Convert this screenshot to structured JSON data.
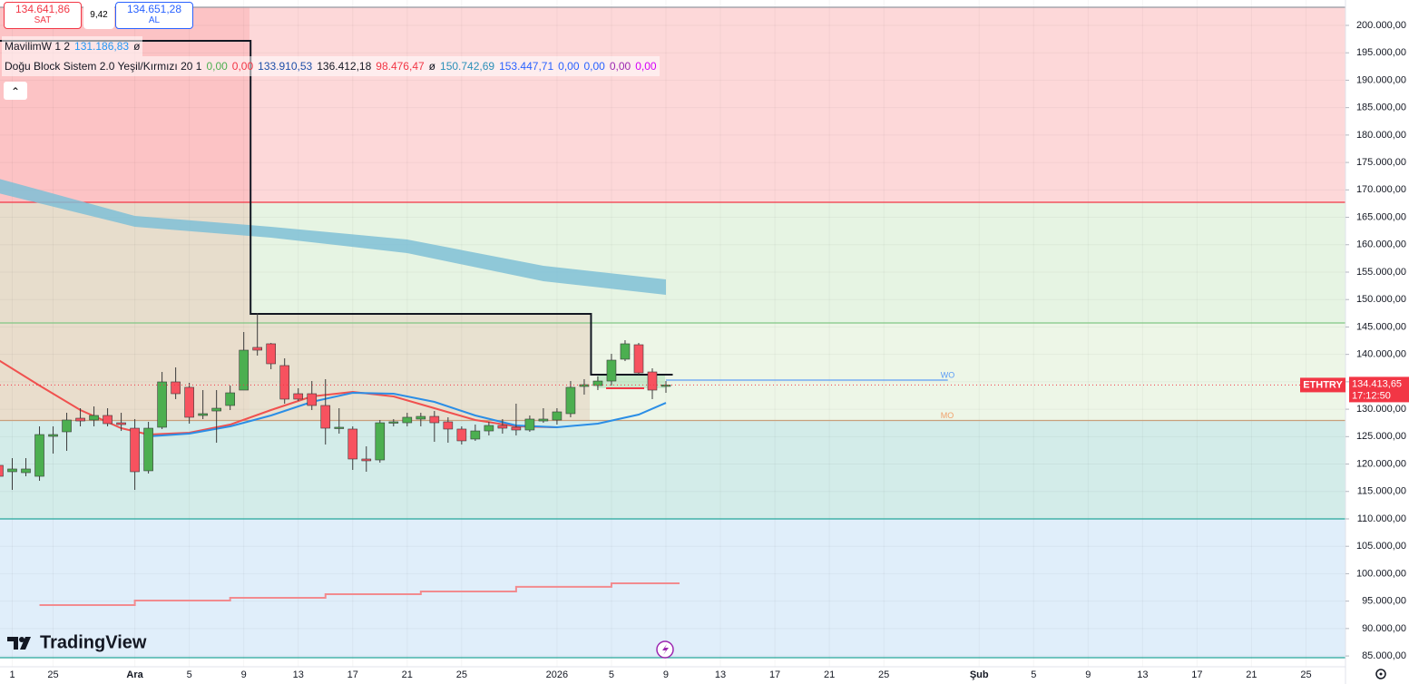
{
  "header": {
    "sell_price": "134.641,86",
    "sell_label": "SAT",
    "spread": "9,42",
    "buy_price": "134.651,28",
    "buy_label": "AL"
  },
  "legend": [
    {
      "name": "MavilimW 1 2",
      "values": [
        {
          "text": "131.186,83",
          "color": "#2196f3"
        },
        {
          "text": "ø",
          "color": "#131722"
        }
      ]
    },
    {
      "name": "Doğu Block Sistem 2.0 Yeşil/Kırmızı 20 1",
      "values": [
        {
          "text": "0,00",
          "color": "#4caf50"
        },
        {
          "text": "0,00",
          "color": "#f23645"
        },
        {
          "text": "133.910,53",
          "color": "#1e4fa8"
        },
        {
          "text": "136.412,18",
          "color": "#131722"
        },
        {
          "text": "98.476,47",
          "color": "#f23645"
        },
        {
          "text": "ø",
          "color": "#131722"
        },
        {
          "text": "150.742,69",
          "color": "#2a8fb8"
        },
        {
          "text": "153.447,71",
          "color": "#2962ff"
        },
        {
          "text": "0,00",
          "color": "#2962ff"
        },
        {
          "text": "0,00",
          "color": "#2962ff"
        },
        {
          "text": "0,00",
          "color": "#9c27b0"
        },
        {
          "text": "0,00",
          "color": "#d500f9"
        }
      ]
    }
  ],
  "branding": "TradingView",
  "chart_data": {
    "type": "candlestick",
    "symbol": "ETHTRY",
    "last_price": 134413.65,
    "last_price_label": "134.413,65",
    "countdown": "17:12:50",
    "last_price_color": "#f23645",
    "xlim": [
      -9.9,
      88.9
    ],
    "xticks": [
      {
        "value": -9,
        "label": "1"
      },
      {
        "value": -6,
        "label": "25"
      },
      {
        "value": 0,
        "label": "Ara"
      },
      {
        "value": 4,
        "label": "5"
      },
      {
        "value": 8,
        "label": "9"
      },
      {
        "value": 12,
        "label": "13"
      },
      {
        "value": 16,
        "label": "17"
      },
      {
        "value": 20,
        "label": "21"
      },
      {
        "value": 24,
        "label": "25"
      },
      {
        "value": 31,
        "label": "2026"
      },
      {
        "value": 35,
        "label": "5"
      },
      {
        "value": 39,
        "label": "9"
      },
      {
        "value": 43,
        "label": "13"
      },
      {
        "value": 47,
        "label": "17"
      },
      {
        "value": 51,
        "label": "21"
      },
      {
        "value": 55,
        "label": "25"
      },
      {
        "value": 62,
        "label": "Şub"
      },
      {
        "value": 66,
        "label": "5"
      },
      {
        "value": 70,
        "label": "9"
      },
      {
        "value": 74,
        "label": "13"
      },
      {
        "value": 78,
        "label": "17"
      },
      {
        "value": 82,
        "label": "21"
      },
      {
        "value": 86,
        "label": "25"
      }
    ],
    "ylim": [
      83030,
      204630
    ],
    "yticks": [
      {
        "value": 200000,
        "label": "200.000,00"
      },
      {
        "value": 195000,
        "label": "195.000,00"
      },
      {
        "value": 190000,
        "label": "190.000,00"
      },
      {
        "value": 185000,
        "label": "185.000,00"
      },
      {
        "value": 180000,
        "label": "180.000,00"
      },
      {
        "value": 175000,
        "label": "175.000,00"
      },
      {
        "value": 170000,
        "label": "170.000,00"
      },
      {
        "value": 165000,
        "label": "165.000,00"
      },
      {
        "value": 160000,
        "label": "160.000,00"
      },
      {
        "value": 155000,
        "label": "155.000,00"
      },
      {
        "value": 150000,
        "label": "150.000,00"
      },
      {
        "value": 145000,
        "label": "145.000,00"
      },
      {
        "value": 140000,
        "label": "140.000,00"
      },
      {
        "value": 135000,
        "label": "135.000,00"
      },
      {
        "value": 130000,
        "label": "130.000,00"
      },
      {
        "value": 125000,
        "label": "125.000,00"
      },
      {
        "value": 120000,
        "label": "120.000,00"
      },
      {
        "value": 115000,
        "label": "115.000,00"
      },
      {
        "value": 110000,
        "label": "110.000,00"
      },
      {
        "value": 105000,
        "label": "105.000,00"
      },
      {
        "value": 100000,
        "label": "100.000,00"
      },
      {
        "value": 95000,
        "label": "95.000,00"
      },
      {
        "value": 90000,
        "label": "90.000,00"
      },
      {
        "value": 85000,
        "label": "85.000,00"
      }
    ],
    "grid": true,
    "zones": [
      {
        "from": 167740,
        "to": 203310,
        "color": "#fdd8d9"
      },
      {
        "from": 145730,
        "to": 167740,
        "color": "#e6f4e3"
      },
      {
        "from": 127950,
        "to": 145730,
        "color": "#edf6e7"
      },
      {
        "from": 110000,
        "to": 127950,
        "color": "#d3ece9"
      },
      {
        "from": 84680,
        "to": 110000,
        "color": "#e0eefa"
      }
    ],
    "levels": [
      {
        "value": 203310,
        "color": "#9598a1"
      },
      {
        "value": 167740,
        "color": "#f23645"
      },
      {
        "value": 145730,
        "color": "#81c784"
      },
      {
        "value": 127950,
        "color": "#c9a07c"
      },
      {
        "value": 110000,
        "color": "#26a69a"
      },
      {
        "value": 84680,
        "color": "#26a69a"
      },
      {
        "value": 135310,
        "color": "#5b9cf6",
        "x": [
          39,
          59.7
        ],
        "label": "WO"
      },
      {
        "value": 127950,
        "color": "#f0a06a",
        "x": [
          59.7,
          59.7
        ],
        "label": "MO"
      }
    ],
    "candles": {
      "up_color": "#4caf50",
      "down_color": "#f7525f",
      "x": [
        -10,
        -9,
        -8,
        -7,
        -6,
        -5,
        -4,
        -3,
        -2,
        -1,
        0,
        1,
        2,
        3,
        4,
        5,
        6,
        7,
        8,
        9,
        10,
        11,
        12,
        13,
        14,
        15,
        16,
        17,
        18,
        19,
        20,
        21,
        22,
        23,
        24,
        25,
        26,
        27,
        28,
        29,
        30,
        31,
        32,
        33,
        34,
        35,
        36,
        37,
        38,
        39
      ],
      "open": [
        119760,
        118600,
        118430,
        117770,
        125050,
        125880,
        128360,
        128030,
        128860,
        127530,
        126540,
        118770,
        126710,
        134980,
        133990,
        128860,
        129680,
        130680,
        133490,
        141270,
        141930,
        137960,
        132830,
        132830,
        130680,
        126540,
        126380,
        120920,
        120750,
        127530,
        127530,
        128200,
        128690,
        127700,
        126380,
        124560,
        126040,
        127040,
        126710,
        126210,
        127860,
        128030,
        129190,
        134150,
        134320,
        135140,
        139120,
        141760,
        136800,
        134320
      ],
      "high": [
        120250,
        121080,
        121080,
        126870,
        126870,
        129350,
        130180,
        130510,
        130180,
        129350,
        128200,
        127700,
        136800,
        137630,
        134810,
        133490,
        133490,
        134320,
        144080,
        147550,
        142090,
        139280,
        133820,
        135140,
        135480,
        130180,
        126870,
        123230,
        128030,
        128200,
        129350,
        129350,
        129680,
        128530,
        126870,
        127200,
        127700,
        128200,
        131010,
        128860,
        130180,
        130180,
        135140,
        135480,
        135970,
        140110,
        142590,
        142090,
        137460,
        135140
      ],
      "low": [
        117280,
        115290,
        117770,
        116950,
        121910,
        122410,
        126870,
        126870,
        126870,
        126040,
        115290,
        118270,
        126380,
        131840,
        127370,
        128200,
        123890,
        129850,
        133490,
        139780,
        137300,
        131010,
        131500,
        129850,
        123560,
        125550,
        118930,
        118600,
        120250,
        126870,
        126870,
        126870,
        124060,
        123890,
        123560,
        124230,
        125220,
        125550,
        125220,
        125880,
        127530,
        127200,
        128530,
        132660,
        133490,
        134320,
        138780,
        136300,
        131840,
        132990
      ],
      "close": [
        117770,
        119100,
        119100,
        125380,
        125380,
        128030,
        127860,
        128860,
        127370,
        127200,
        118600,
        126540,
        134980,
        132830,
        128530,
        129190,
        130180,
        132990,
        140770,
        140770,
        138290,
        131840,
        131840,
        130680,
        126540,
        126710,
        120920,
        120590,
        127530,
        127700,
        128530,
        128690,
        127530,
        126380,
        124230,
        126040,
        127040,
        126540,
        126210,
        128200,
        128200,
        129520,
        133990,
        134480,
        135140,
        138950,
        141930,
        136630,
        133490,
        134410
      ]
    },
    "series": [
      {
        "type": "band",
        "color": "#7fbfd6",
        "x": [
          -10,
          0,
          10,
          20,
          30,
          39
        ],
        "upper": [
          172040,
          165260,
          163270,
          160950,
          156150,
          153670
        ],
        "lower": [
          169390,
          163270,
          161290,
          158470,
          153340,
          150860
        ]
      },
      {
        "type": "step",
        "color": "#131722",
        "x": [
          -10.5,
          8.5,
          33.5,
          39.5
        ],
        "values": [
          197190,
          147390,
          136300,
          136300
        ]
      },
      {
        "type": "step",
        "color": "#f28b8f",
        "x": [
          -7,
          0,
          7,
          14,
          21,
          28,
          35,
          40
        ],
        "values": [
          94280,
          95110,
          95610,
          96270,
          96770,
          97600,
          98260,
          98260
        ]
      },
      {
        "type": "line",
        "color": "#f0514f",
        "x": [
          -10,
          -7,
          -4,
          -1,
          1,
          4,
          7,
          10,
          13,
          16,
          19,
          22,
          25,
          28,
          31
        ],
        "values": [
          138950,
          134320,
          129850,
          126540,
          125380,
          125710,
          127200,
          129850,
          132330,
          133160,
          132330,
          130180,
          128030,
          126870,
          126710
        ]
      },
      {
        "type": "line",
        "color": "#2b8ee6",
        "x": [
          1,
          4,
          7,
          10,
          13,
          16,
          19,
          22,
          25,
          28,
          31,
          34,
          37,
          39
        ],
        "values": [
          125050,
          125550,
          126870,
          128860,
          131340,
          132990,
          132830,
          131340,
          128860,
          127040,
          126710,
          127370,
          129020,
          131170
        ]
      }
    ]
  }
}
